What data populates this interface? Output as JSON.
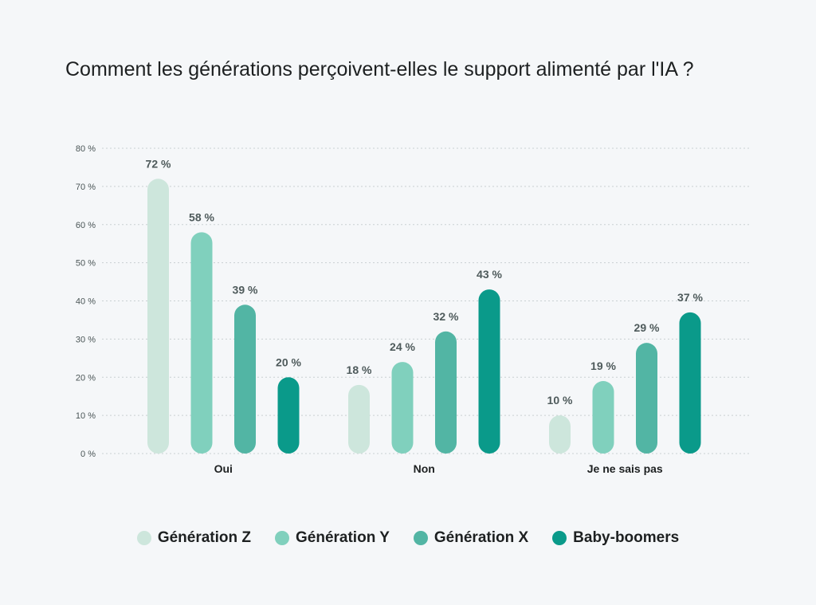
{
  "chart_data": {
    "type": "bar",
    "title": "Comment les générations perçoivent-elles le support alimenté par l'IA ?",
    "categories": [
      "Oui",
      "Non",
      "Je ne sais pas"
    ],
    "series": [
      {
        "name": "Génération Z",
        "color": "#cde6dc",
        "values": [
          72,
          18,
          10
        ],
        "labels": [
          "72 %",
          "18 %",
          "10 %"
        ]
      },
      {
        "name": "Génération Y",
        "color": "#80d0bd",
        "values": [
          58,
          24,
          19
        ],
        "labels": [
          "58 %",
          "24 %",
          "19 %"
        ]
      },
      {
        "name": "Génération X",
        "color": "#52b5a4",
        "values": [
          39,
          32,
          29
        ],
        "labels": [
          "39 %",
          "32 %",
          "29 %"
        ]
      },
      {
        "name": "Baby-boomers",
        "color": "#0a9a8a",
        "values": [
          20,
          43,
          37
        ],
        "labels": [
          "20 %",
          "43 %",
          "37 %"
        ]
      }
    ],
    "yticks": [
      0,
      10,
      20,
      30,
      40,
      50,
      60,
      70,
      80
    ],
    "ytick_labels": [
      "0 %",
      "10 %",
      "20 %",
      "30 %",
      "40 %",
      "50 %",
      "60 %",
      "70 %",
      "80 %"
    ],
    "ylim": [
      0,
      80
    ],
    "grid": true,
    "legend_position": "bottom"
  }
}
